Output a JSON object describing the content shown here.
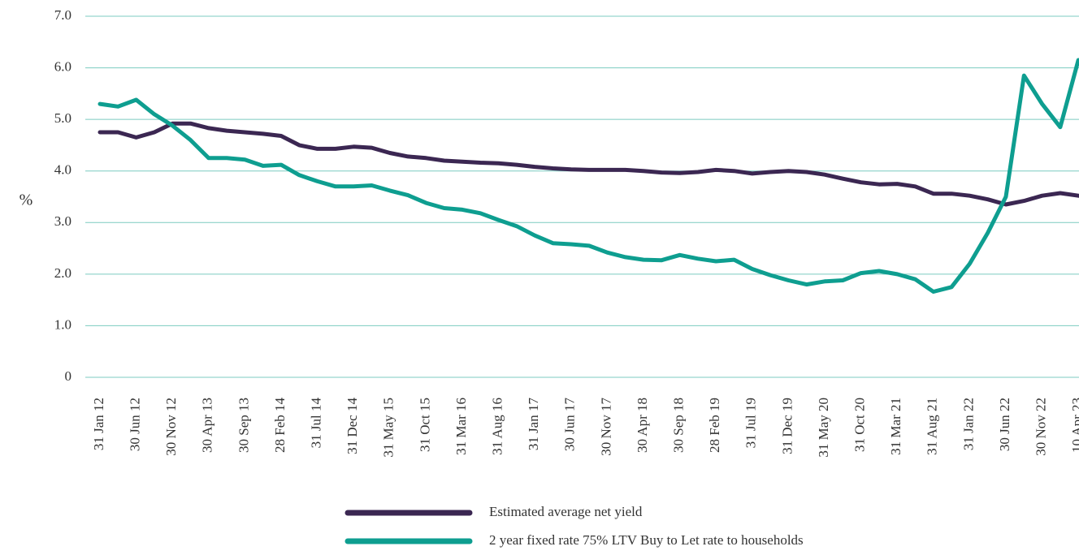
{
  "chart_data": {
    "type": "line",
    "y_label": "%",
    "categories": [
      "31 Jan 12",
      null,
      "30 Jun 12",
      null,
      "30 Nov 12",
      null,
      "30 Apr 13",
      null,
      "30 Sep 13",
      null,
      "28 Feb 14",
      null,
      "31 Jul 14",
      null,
      "31 Dec 14",
      null,
      "31 May 15",
      null,
      "31 Oct 15",
      null,
      "31 Mar 16",
      null,
      "31 Aug 16",
      null,
      "31 Jan 17",
      null,
      "30 Jun 17",
      null,
      "30 Nov 17",
      null,
      "30 Apr 18",
      null,
      "30 Sep 18",
      null,
      "28 Feb 19",
      null,
      "31 Jul 19",
      null,
      "31 Dec 19",
      null,
      "31 May 20",
      null,
      "31 Oct 20",
      null,
      "31 Mar 21",
      null,
      "31 Aug 21",
      null,
      "31 Jan 22",
      null,
      "30 Jun 22",
      null,
      "30 Nov 22",
      null,
      "10 Apr 23"
    ],
    "series": [
      {
        "name": "Estimated average net yield",
        "color": "#3b2752",
        "values": [
          4.75,
          4.75,
          4.65,
          4.75,
          4.92,
          4.92,
          4.83,
          4.78,
          4.75,
          4.72,
          4.68,
          4.5,
          4.43,
          4.43,
          4.47,
          4.45,
          4.35,
          4.28,
          4.25,
          4.2,
          4.18,
          4.16,
          4.15,
          4.12,
          4.08,
          4.05,
          4.03,
          4.02,
          4.02,
          4.02,
          4.0,
          3.97,
          3.96,
          3.98,
          4.02,
          4.0,
          3.95,
          3.98,
          4.0,
          3.98,
          3.93,
          3.85,
          3.78,
          3.74,
          3.75,
          3.7,
          3.56,
          3.56,
          3.52,
          3.45,
          3.35,
          3.42,
          3.52,
          3.57,
          3.52
        ]
      },
      {
        "name": "2 year fixed rate 75% LTV Buy to Let rate to households",
        "color": "#0e9e90",
        "values": [
          5.3,
          5.25,
          5.38,
          5.1,
          4.88,
          4.6,
          4.25,
          4.25,
          4.22,
          4.1,
          4.12,
          3.92,
          3.8,
          3.7,
          3.7,
          3.72,
          3.62,
          3.53,
          3.38,
          3.28,
          3.25,
          3.18,
          3.05,
          2.93,
          2.75,
          2.6,
          2.58,
          2.55,
          2.42,
          2.33,
          2.28,
          2.27,
          2.37,
          2.3,
          2.25,
          2.28,
          2.1,
          1.98,
          1.88,
          1.8,
          1.86,
          1.88,
          2.02,
          2.06,
          2.0,
          1.9,
          1.66,
          1.75,
          2.2,
          2.8,
          3.5,
          5.85,
          5.3,
          4.85,
          6.15
        ]
      }
    ],
    "ylim": [
      0,
      7
    ],
    "yticks": [
      0,
      {
        "value": 1,
        "label": "1.0"
      },
      {
        "value": 2,
        "label": "2.0"
      },
      {
        "value": 3,
        "label": "3.0"
      },
      {
        "value": 4,
        "label": "4.0"
      },
      {
        "value": 5,
        "label": "5.0"
      },
      {
        "value": 6,
        "label": "6.0"
      },
      {
        "value": 7,
        "label": "7.0"
      }
    ],
    "grid": true,
    "grid_color": "#7ccbc0",
    "legend": "bottom"
  }
}
